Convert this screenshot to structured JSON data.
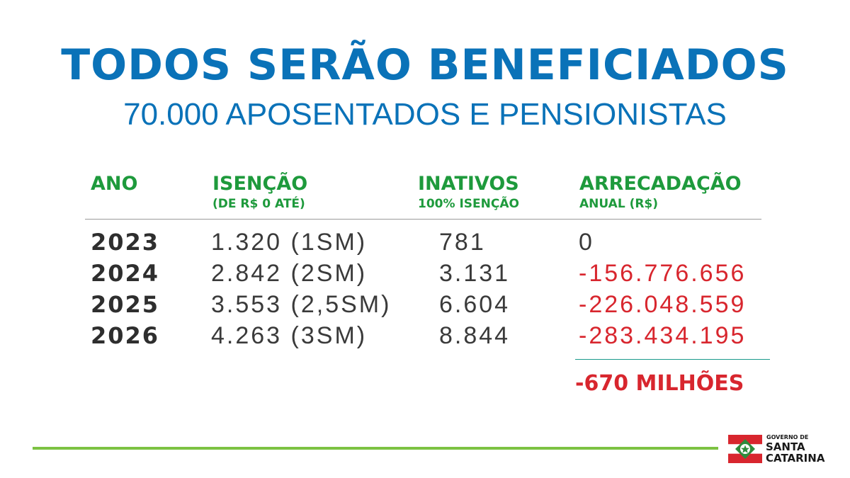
{
  "header": {
    "title": "TODOS SERÃO BENEFICIADOS",
    "subtitle": "70.000 APOSENTADOS E PENSIONISTAS"
  },
  "table": {
    "columns": [
      {
        "label": "ANO",
        "sublabel": ""
      },
      {
        "label": "ISENÇÃO",
        "sublabel": "(DE R$ 0 ATÉ)"
      },
      {
        "label": "INATIVOS",
        "sublabel": "100% ISENÇÃO"
      },
      {
        "label": "ARRECADAÇÃO",
        "sublabel": "ANUAL (R$)"
      }
    ],
    "rows": [
      {
        "ano": "2023",
        "isencao": "1.320 (1SM)",
        "inativos": "781",
        "arrecadacao": "0"
      },
      {
        "ano": "2024",
        "isencao": "2.842 (2SM)",
        "inativos": "3.131",
        "arrecadacao": "-156.776.656"
      },
      {
        "ano": "2025",
        "isencao": "3.553 (2,5SM)",
        "inativos": "6.604",
        "arrecadacao": "-226.048.559"
      },
      {
        "ano": "2026",
        "isencao": "4.263 (3SM)",
        "inativos": "8.844",
        "arrecadacao": "-283.434.195"
      }
    ],
    "total": "-670 MILHÕES"
  },
  "logo": {
    "line1": "GOVERNO DE",
    "line2": "SANTA",
    "line3": "CATARINA",
    "icon": "santa-catarina-flag-icon"
  },
  "colors": {
    "title_blue": "#0a72b8",
    "header_green": "#1e9a3c",
    "negative_red": "#d8262e",
    "footer_green": "#7cc242"
  }
}
